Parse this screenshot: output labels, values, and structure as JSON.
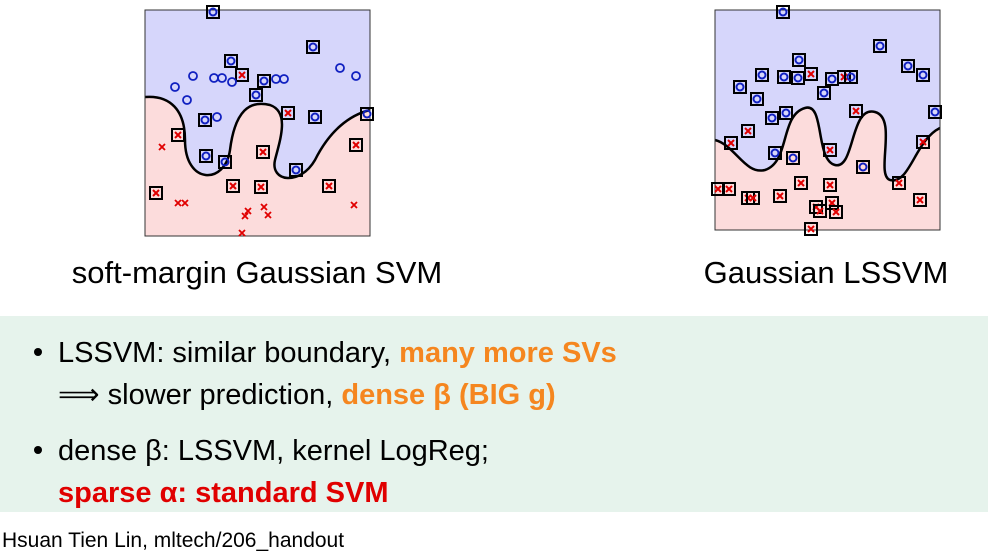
{
  "figures": [
    {
      "caption": "soft-margin Gaussian SVM"
    },
    {
      "caption": "Gaussian LSSVM"
    }
  ],
  "bullets": [
    {
      "text": "LSSVM: similar boundary,",
      "highlight": "many more SVs",
      "arrow": "⟹",
      "line2_text": "slower prediction,",
      "line2_highlight": "dense β (BIG g)"
    },
    {
      "text": "dense β: LSSVM, kernel LogReg;",
      "highlight": "sparse α: standard SVM"
    }
  ],
  "footer": "Hsuan Tien Lin, mltech/206_handout"
}
